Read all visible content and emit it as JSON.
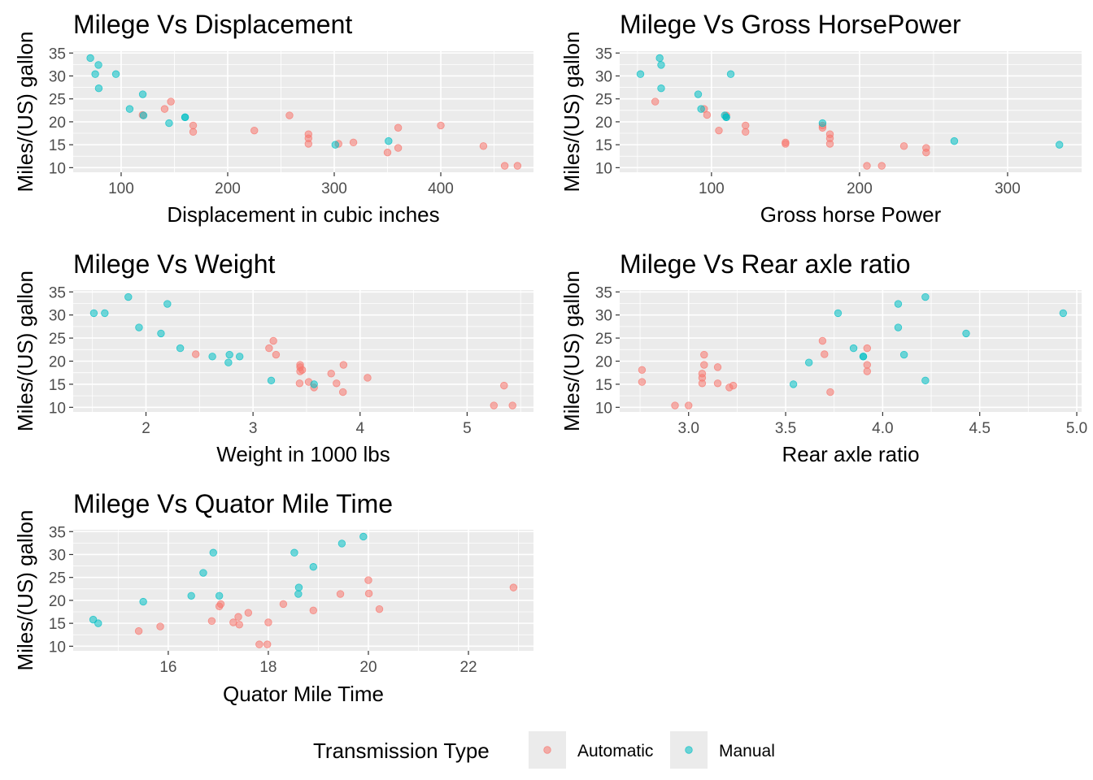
{
  "chart_data": [
    {
      "type": "scatter",
      "title": "Milege Vs Displacement",
      "xlabel": "Displacement in cubic inches",
      "ylabel": "Miles/(US) gallon",
      "xlim": [
        55,
        487
      ],
      "ylim": [
        9.0,
        35.4
      ],
      "xticks": [
        100,
        200,
        300,
        400
      ],
      "xtick_labels": [
        "100",
        "200",
        "300",
        "400"
      ],
      "yticks": [
        10,
        15,
        20,
        25,
        30,
        35
      ],
      "ytick_labels": [
        "10",
        "15",
        "20",
        "25",
        "30",
        "35"
      ],
      "grid": true,
      "series": [
        {
          "name": "Automatic",
          "points": [
            [
              258,
              21.4
            ],
            [
              360,
              18.7
            ],
            [
              225,
              18.1
            ],
            [
              360,
              14.3
            ],
            [
              146.7,
              24.4
            ],
            [
              140.8,
              22.8
            ],
            [
              167.6,
              19.2
            ],
            [
              167.6,
              17.8
            ],
            [
              275.8,
              16.4
            ],
            [
              275.8,
              17.3
            ],
            [
              275.8,
              15.2
            ],
            [
              472,
              10.4
            ],
            [
              460,
              10.4
            ],
            [
              440,
              14.7
            ],
            [
              120.1,
              21.5
            ],
            [
              318,
              15.5
            ],
            [
              304,
              15.2
            ],
            [
              350,
              13.3
            ],
            [
              400,
              19.2
            ]
          ]
        },
        {
          "name": "Manual",
          "points": [
            [
              160,
              21.0
            ],
            [
              160,
              21.0
            ],
            [
              108,
              22.8
            ],
            [
              78.7,
              32.4
            ],
            [
              75.7,
              30.4
            ],
            [
              71.1,
              33.9
            ],
            [
              79,
              27.3
            ],
            [
              120.3,
              26.0
            ],
            [
              95.1,
              30.4
            ],
            [
              351,
              15.8
            ],
            [
              145,
              19.7
            ],
            [
              301,
              15.0
            ],
            [
              121,
              21.4
            ]
          ]
        }
      ]
    },
    {
      "type": "scatter",
      "title": "Milege Vs Gross HorsePower",
      "xlabel": "Gross horse Power",
      "ylabel": "Miles/(US) gallon",
      "xlim": [
        38,
        350
      ],
      "ylim": [
        9.0,
        35.4
      ],
      "xticks": [
        100,
        200,
        300
      ],
      "xtick_labels": [
        "100",
        "200",
        "300"
      ],
      "yticks": [
        10,
        15,
        20,
        25,
        30,
        35
      ],
      "ytick_labels": [
        "10",
        "15",
        "20",
        "25",
        "30",
        "35"
      ],
      "grid": true,
      "series": [
        {
          "name": "Automatic",
          "points": [
            [
              110,
              21.4
            ],
            [
              175,
              18.7
            ],
            [
              105,
              18.1
            ],
            [
              245,
              14.3
            ],
            [
              62,
              24.4
            ],
            [
              95,
              22.8
            ],
            [
              123,
              19.2
            ],
            [
              123,
              17.8
            ],
            [
              180,
              16.4
            ],
            [
              180,
              17.3
            ],
            [
              180,
              15.2
            ],
            [
              205,
              10.4
            ],
            [
              215,
              10.4
            ],
            [
              230,
              14.7
            ],
            [
              97,
              21.5
            ],
            [
              150,
              15.5
            ],
            [
              150,
              15.2
            ],
            [
              245,
              13.3
            ],
            [
              175,
              19.2
            ]
          ]
        },
        {
          "name": "Manual",
          "points": [
            [
              110,
              21.0
            ],
            [
              110,
              21.0
            ],
            [
              93,
              22.8
            ],
            [
              66,
              32.4
            ],
            [
              52,
              30.4
            ],
            [
              65,
              33.9
            ],
            [
              66,
              27.3
            ],
            [
              91,
              26.0
            ],
            [
              113,
              30.4
            ],
            [
              264,
              15.8
            ],
            [
              175,
              19.7
            ],
            [
              335,
              15.0
            ],
            [
              109,
              21.4
            ]
          ]
        }
      ]
    },
    {
      "type": "scatter",
      "title": "Milege Vs Weight",
      "xlabel": "Weight in 1000 lbs",
      "ylabel": "Miles/(US) gallon",
      "xlim": [
        1.32,
        5.62
      ],
      "ylim": [
        9.0,
        35.4
      ],
      "xticks": [
        2,
        3,
        4,
        5
      ],
      "xtick_labels": [
        "2",
        "3",
        "4",
        "5"
      ],
      "yticks": [
        10,
        15,
        20,
        25,
        30,
        35
      ],
      "ytick_labels": [
        "10",
        "15",
        "20",
        "25",
        "30",
        "35"
      ],
      "grid": true,
      "series": [
        {
          "name": "Automatic",
          "points": [
            [
              3.215,
              21.4
            ],
            [
              3.44,
              18.7
            ],
            [
              3.46,
              18.1
            ],
            [
              3.57,
              14.3
            ],
            [
              3.19,
              24.4
            ],
            [
              3.15,
              22.8
            ],
            [
              3.44,
              19.2
            ],
            [
              3.44,
              17.8
            ],
            [
              4.07,
              16.4
            ],
            [
              3.73,
              17.3
            ],
            [
              3.78,
              15.2
            ],
            [
              5.25,
              10.4
            ],
            [
              5.424,
              10.4
            ],
            [
              5.345,
              14.7
            ],
            [
              2.465,
              21.5
            ],
            [
              3.52,
              15.5
            ],
            [
              3.435,
              15.2
            ],
            [
              3.84,
              13.3
            ],
            [
              3.845,
              19.2
            ]
          ]
        },
        {
          "name": "Manual",
          "points": [
            [
              2.62,
              21.0
            ],
            [
              2.875,
              21.0
            ],
            [
              2.32,
              22.8
            ],
            [
              2.2,
              32.4
            ],
            [
              1.615,
              30.4
            ],
            [
              1.835,
              33.9
            ],
            [
              1.935,
              27.3
            ],
            [
              2.14,
              26.0
            ],
            [
              1.513,
              30.4
            ],
            [
              3.17,
              15.8
            ],
            [
              2.77,
              19.7
            ],
            [
              3.57,
              15.0
            ],
            [
              2.78,
              21.4
            ]
          ]
        }
      ]
    },
    {
      "type": "scatter",
      "title": "Milege Vs Rear axle ratio",
      "xlabel": "Rear axle ratio",
      "ylabel": "Miles/(US) gallon",
      "xlim": [
        2.645,
        5.025
      ],
      "ylim": [
        9.0,
        35.4
      ],
      "xticks": [
        3.0,
        3.5,
        4.0,
        4.5,
        5.0
      ],
      "xtick_labels": [
        "3.0",
        "3.5",
        "4.0",
        "4.5",
        "5.0"
      ],
      "yticks": [
        10,
        15,
        20,
        25,
        30,
        35
      ],
      "ytick_labels": [
        "10",
        "15",
        "20",
        "25",
        "30",
        "35"
      ],
      "grid": true,
      "series": [
        {
          "name": "Automatic",
          "points": [
            [
              3.08,
              21.4
            ],
            [
              3.15,
              18.7
            ],
            [
              2.76,
              18.1
            ],
            [
              3.21,
              14.3
            ],
            [
              3.69,
              24.4
            ],
            [
              3.92,
              22.8
            ],
            [
              3.92,
              19.2
            ],
            [
              3.92,
              17.8
            ],
            [
              3.07,
              16.4
            ],
            [
              3.07,
              17.3
            ],
            [
              3.07,
              15.2
            ],
            [
              2.93,
              10.4
            ],
            [
              3.0,
              10.4
            ],
            [
              3.23,
              14.7
            ],
            [
              3.7,
              21.5
            ],
            [
              2.76,
              15.5
            ],
            [
              3.15,
              15.2
            ],
            [
              3.73,
              13.3
            ],
            [
              3.08,
              19.2
            ]
          ]
        },
        {
          "name": "Manual",
          "points": [
            [
              3.9,
              21.0
            ],
            [
              3.9,
              21.0
            ],
            [
              3.85,
              22.8
            ],
            [
              4.08,
              32.4
            ],
            [
              4.93,
              30.4
            ],
            [
              4.22,
              33.9
            ],
            [
              4.08,
              27.3
            ],
            [
              4.43,
              26.0
            ],
            [
              3.77,
              30.4
            ],
            [
              4.22,
              15.8
            ],
            [
              3.62,
              19.7
            ],
            [
              3.54,
              15.0
            ],
            [
              4.11,
              21.4
            ]
          ]
        }
      ]
    },
    {
      "type": "scatter",
      "title": "Milege Vs Quator Mile Time",
      "xlabel": "Quator Mile Time",
      "ylabel": "Miles/(US) gallon",
      "xlim": [
        14.1,
        23.3
      ],
      "ylim": [
        9.0,
        35.4
      ],
      "xticks": [
        16,
        18,
        20,
        22
      ],
      "xtick_labels": [
        "16",
        "18",
        "20",
        "22"
      ],
      "yticks": [
        10,
        15,
        20,
        25,
        30,
        35
      ],
      "ytick_labels": [
        "10",
        "15",
        "20",
        "25",
        "30",
        "35"
      ],
      "grid": true,
      "series": [
        {
          "name": "Automatic",
          "points": [
            [
              19.44,
              21.4
            ],
            [
              17.02,
              18.7
            ],
            [
              20.22,
              18.1
            ],
            [
              15.84,
              14.3
            ],
            [
              20.0,
              24.4
            ],
            [
              22.9,
              22.8
            ],
            [
              18.3,
              19.2
            ],
            [
              18.9,
              17.8
            ],
            [
              17.4,
              16.4
            ],
            [
              17.6,
              17.3
            ],
            [
              18.0,
              15.2
            ],
            [
              17.98,
              10.4
            ],
            [
              17.82,
              10.4
            ],
            [
              17.42,
              14.7
            ],
            [
              20.01,
              21.5
            ],
            [
              16.87,
              15.5
            ],
            [
              17.3,
              15.2
            ],
            [
              15.41,
              13.3
            ],
            [
              17.05,
              19.2
            ]
          ]
        },
        {
          "name": "Manual",
          "points": [
            [
              16.46,
              21.0
            ],
            [
              17.02,
              21.0
            ],
            [
              18.61,
              22.8
            ],
            [
              19.47,
              32.4
            ],
            [
              18.52,
              30.4
            ],
            [
              19.9,
              33.9
            ],
            [
              18.9,
              27.3
            ],
            [
              16.7,
              26.0
            ],
            [
              16.9,
              30.4
            ],
            [
              14.5,
              15.8
            ],
            [
              15.5,
              19.7
            ],
            [
              14.6,
              15.0
            ],
            [
              18.6,
              21.4
            ]
          ]
        }
      ]
    }
  ],
  "legend": {
    "title": "Transmission Type",
    "items": [
      {
        "label": "Automatic",
        "color": "#F8766D"
      },
      {
        "label": "Manual",
        "color": "#00BFC4"
      }
    ]
  }
}
